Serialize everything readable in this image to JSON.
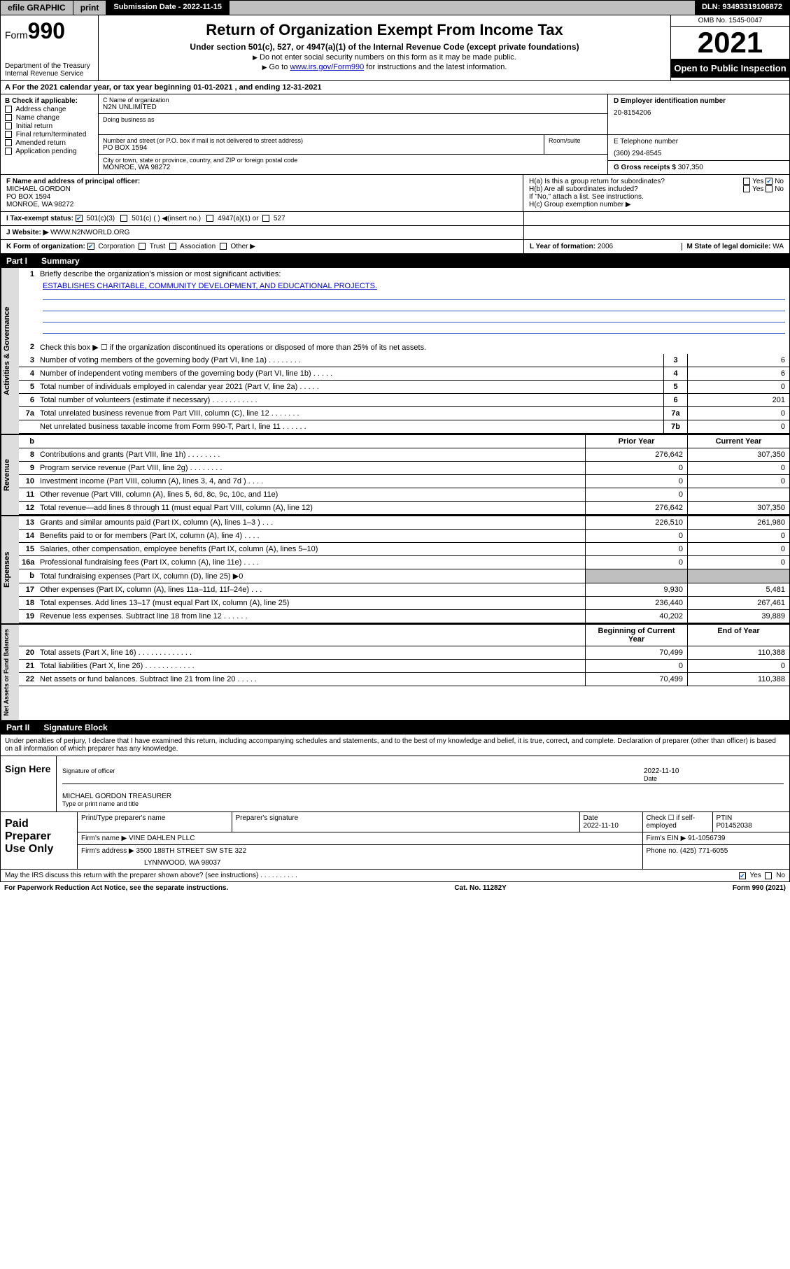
{
  "topbar": {
    "efile": "efile GRAPHIC",
    "print": "print",
    "subdate_label": "Submission Date - 2022-11-15",
    "dln": "DLN: 93493319106872"
  },
  "header": {
    "form_prefix": "Form",
    "form_number": "990",
    "dept": "Department of the Treasury",
    "irs": "Internal Revenue Service",
    "title": "Return of Organization Exempt From Income Tax",
    "subtitle": "Under section 501(c), 527, or 4947(a)(1) of the Internal Revenue Code (except private foundations)",
    "line1": "Do not enter social security numbers on this form as it may be made public.",
    "line2_pre": "Go to ",
    "line2_link": "www.irs.gov/Form990",
    "line2_post": " for instructions and the latest information.",
    "omb": "OMB No. 1545-0047",
    "year": "2021",
    "open_public": "Open to Public Inspection"
  },
  "rowA": "For the 2021 calendar year, or tax year beginning 01-01-2021   , and ending 12-31-2021",
  "colB": {
    "label": "B Check if applicable:",
    "items": [
      "Address change",
      "Name change",
      "Initial return",
      "Final return/terminated",
      "Amended return",
      "Application pending"
    ]
  },
  "colC": {
    "name_label": "C Name of organization",
    "name": "N2N UNLIMITED",
    "dba_label": "Doing business as",
    "dba": "",
    "addr_label": "Number and street (or P.O. box if mail is not delivered to street address)",
    "room_label": "Room/suite",
    "addr": "PO BOX 1594",
    "city_label": "City or town, state or province, country, and ZIP or foreign postal code",
    "city": "MONROE, WA  98272"
  },
  "colD": {
    "ein_label": "D Employer identification number",
    "ein": "20-8154206",
    "phone_label": "E Telephone number",
    "phone": "(360) 294-8545",
    "gross_label": "G Gross receipts $",
    "gross": "307,350"
  },
  "sectionF": {
    "label": "F  Name and address of principal officer:",
    "name": "MICHAEL GORDON",
    "addr1": "PO BOX 1594",
    "addr2": "MONROE, WA  98272"
  },
  "sectionH": {
    "ha": "H(a)  Is this a group return for subordinates?",
    "ha_no": "No",
    "hb": "H(b)  Are all subordinates included?",
    "hb_note": "If \"No,\" attach a list. See instructions.",
    "hc": "H(c)  Group exemption number ▶"
  },
  "rowI": {
    "label": "I   Tax-exempt status:",
    "opt1": "501(c)(3)",
    "opt2": "501(c) (  ) ◀(insert no.)",
    "opt3": "4947(a)(1) or",
    "opt4": "527"
  },
  "rowJ": {
    "label": "J   Website: ▶",
    "value": "WWW.N2NWORLD.ORG"
  },
  "rowK": {
    "label": "K Form of organization:",
    "opts": [
      "Corporation",
      "Trust",
      "Association",
      "Other ▶"
    ],
    "year_label": "L Year of formation:",
    "year": "2006",
    "state_label": "M State of legal domicile:",
    "state": "WA"
  },
  "partI": {
    "title_a": "Part I",
    "title_b": "Summary"
  },
  "summary": {
    "l1_label": "Briefly describe the organization's mission or most significant activities:",
    "l1_text": "ESTABLISHES CHARITABLE, COMMUNITY DEVELOPMENT, AND EDUCATIONAL PROJECTS.",
    "l2": "Check this box ▶ ☐  if the organization discontinued its operations or disposed of more than 25% of its net assets.",
    "rows_governance": [
      {
        "n": "3",
        "t": "Number of voting members of the governing body (Part VI, line 1a)  .   .   .   .   .   .   .   .",
        "box": "3",
        "v": "6"
      },
      {
        "n": "4",
        "t": "Number of independent voting members of the governing body (Part VI, line 1b)  .   .   .   .   .",
        "box": "4",
        "v": "6"
      },
      {
        "n": "5",
        "t": "Total number of individuals employed in calendar year 2021 (Part V, line 2a)  .   .   .   .   .",
        "box": "5",
        "v": "0"
      },
      {
        "n": "6",
        "t": "Total number of volunteers (estimate if necessary)  .   .   .   .   .   .   .   .   .   .   .",
        "box": "6",
        "v": "201"
      },
      {
        "n": "7a",
        "t": "Total unrelated business revenue from Part VIII, column (C), line 12  .   .   .   .   .   .   .",
        "box": "7a",
        "v": "0"
      },
      {
        "n": "",
        "t": "Net unrelated business taxable income from Form 990-T, Part I, line 11  .   .   .   .   .   .",
        "box": "7b",
        "v": "0"
      }
    ],
    "col_hdr_prior": "Prior Year",
    "col_hdr_current": "Current Year",
    "rows_revenue": [
      {
        "n": "8",
        "t": "Contributions and grants (Part VIII, line 1h)  .   .   .   .   .   .   .   .",
        "p": "276,642",
        "c": "307,350"
      },
      {
        "n": "9",
        "t": "Program service revenue (Part VIII, line 2g)  .   .   .   .   .   .   .   .",
        "p": "0",
        "c": "0"
      },
      {
        "n": "10",
        "t": "Investment income (Part VIII, column (A), lines 3, 4, and 7d )  .   .   .   .",
        "p": "0",
        "c": "0"
      },
      {
        "n": "11",
        "t": "Other revenue (Part VIII, column (A), lines 5, 6d, 8c, 9c, 10c, and 11e)",
        "p": "0",
        "c": ""
      },
      {
        "n": "12",
        "t": "Total revenue—add lines 8 through 11 (must equal Part VIII, column (A), line 12)",
        "p": "276,642",
        "c": "307,350"
      }
    ],
    "rows_expenses": [
      {
        "n": "13",
        "t": "Grants and similar amounts paid (Part IX, column (A), lines 1–3 )  .   .   .",
        "p": "226,510",
        "c": "261,980"
      },
      {
        "n": "14",
        "t": "Benefits paid to or for members (Part IX, column (A), line 4)  .   .   .   .",
        "p": "0",
        "c": "0"
      },
      {
        "n": "15",
        "t": "Salaries, other compensation, employee benefits (Part IX, column (A), lines 5–10)",
        "p": "0",
        "c": "0"
      },
      {
        "n": "16a",
        "t": "Professional fundraising fees (Part IX, column (A), line 11e)  .   .   .   .",
        "p": "0",
        "c": "0"
      },
      {
        "n": "b",
        "t": "Total fundraising expenses (Part IX, column (D), line 25) ▶0",
        "p": "",
        "c": "",
        "shade": true
      },
      {
        "n": "17",
        "t": "Other expenses (Part IX, column (A), lines 11a–11d, 11f–24e)  .   .   .",
        "p": "9,930",
        "c": "5,481"
      },
      {
        "n": "18",
        "t": "Total expenses. Add lines 13–17 (must equal Part IX, column (A), line 25)",
        "p": "236,440",
        "c": "267,461"
      },
      {
        "n": "19",
        "t": "Revenue less expenses. Subtract line 18 from line 12  .   .   .   .   .   .",
        "p": "40,202",
        "c": "39,889"
      }
    ],
    "col_hdr_boy": "Beginning of Current Year",
    "col_hdr_eoy": "End of Year",
    "rows_netassets": [
      {
        "n": "20",
        "t": "Total assets (Part X, line 16)  .   .   .   .   .   .   .   .   .   .   .   .   .",
        "p": "70,499",
        "c": "110,388"
      },
      {
        "n": "21",
        "t": "Total liabilities (Part X, line 26)  .   .   .   .   .   .   .   .   .   .   .   .",
        "p": "0",
        "c": "0"
      },
      {
        "n": "22",
        "t": "Net assets or fund balances. Subtract line 21 from line 20  .   .   .   .   .",
        "p": "70,499",
        "c": "110,388"
      }
    ]
  },
  "partII": {
    "title_a": "Part II",
    "title_b": "Signature Block"
  },
  "sig": {
    "penalty": "Under penalties of perjury, I declare that I have examined this return, including accompanying schedules and statements, and to the best of my knowledge and belief, it is true, correct, and complete. Declaration of preparer (other than officer) is based on all information of which preparer has any knowledge.",
    "sign_here": "Sign Here",
    "sig_officer": "Signature of officer",
    "sig_date": "2022-11-10",
    "date_lab": "Date",
    "name_title": "MICHAEL GORDON  TREASURER",
    "name_lab": "Type or print name and title"
  },
  "paid": {
    "label": "Paid Preparer Use Only",
    "hdr1": "Print/Type preparer's name",
    "hdr2": "Preparer's signature",
    "hdr3": "Date",
    "date": "2022-11-10",
    "hdr4": "Check ☐ if self-employed",
    "hdr5": "PTIN",
    "ptin": "P01452038",
    "firm_name_lab": "Firm's name    ▶",
    "firm_name": "VINE DAHLEN PLLC",
    "firm_ein_lab": "Firm's EIN ▶",
    "firm_ein": "91-1056739",
    "firm_addr_lab": "Firm's address ▶",
    "firm_addr1": "3500 188TH STREET SW STE 322",
    "firm_addr2": "LYNNWOOD, WA  98037",
    "phone_lab": "Phone no.",
    "phone": "(425) 771-6055"
  },
  "footer": {
    "discuss": "May the IRS discuss this return with the preparer shown above? (see instructions)  .   .   .   .   .   .   .   .   .   .",
    "yes": "Yes",
    "no": "No",
    "paperwork": "For Paperwork Reduction Act Notice, see the separate instructions.",
    "cat": "Cat. No. 11282Y",
    "form": "Form 990 (2021)"
  },
  "vtabs": {
    "gov": "Activities & Governance",
    "rev": "Revenue",
    "exp": "Expenses",
    "net": "Net Assets or Fund Balances"
  }
}
